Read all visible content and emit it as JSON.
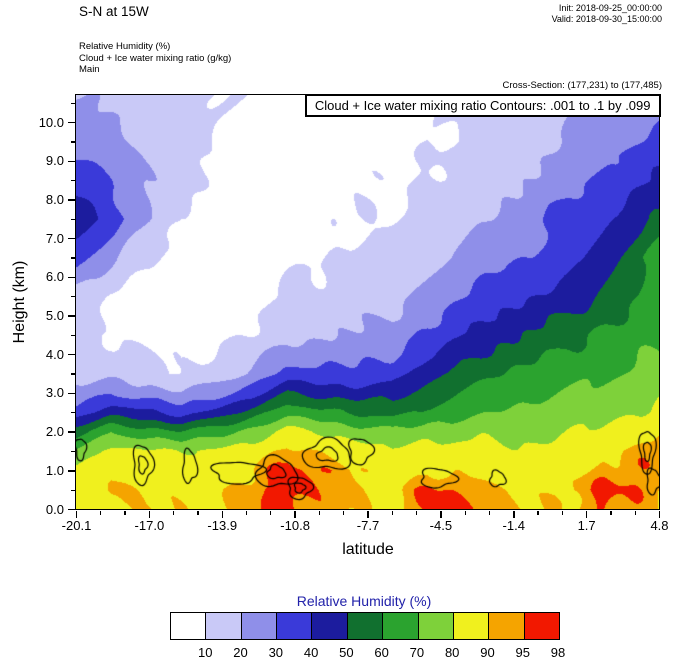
{
  "header": {
    "title": "S-N at 15W",
    "init_label": "Init: 2018-09-25_00:00:00",
    "valid_label": "Valid: 2018-09-30_15:00:00",
    "legend_lines": [
      "Relative Humidity  (%)",
      "Cloud + Ice water mixing ratio  (g/kg)",
      "Main"
    ],
    "cross_section": "Cross-Section: (177,231) to (177,485)"
  },
  "plot": {
    "annotation": "Cloud + Ice water mixing ratio Contours: .001 to .1 by .099",
    "xlabel": "latitude",
    "ylabel": "Height (km)"
  },
  "colorbar": {
    "title": "Relative Humidity  (%)",
    "title_color": "#2222aa",
    "labels": [
      "10",
      "20",
      "30",
      "40",
      "50",
      "60",
      "70",
      "80",
      "90",
      "95",
      "98"
    ],
    "colors": [
      "#ffffff",
      "#c9c9f7",
      "#8f8fe9",
      "#3a3ad9",
      "#1c1c9e",
      "#11702f",
      "#2ba32f",
      "#7ed13a",
      "#f0f01e",
      "#f5a400",
      "#f21800"
    ]
  },
  "chart_data": {
    "type": "heatmap",
    "title": "S-N at 15W cross-section of Relative Humidity (%) with Cloud + Ice water mixing ratio contours",
    "xlabel": "latitude",
    "ylabel": "Height (km)",
    "xlim": [
      -20.1,
      4.8
    ],
    "ylim": [
      0,
      10.7
    ],
    "x_tick_labels": [
      "-20.1",
      "-17.0",
      "-13.9",
      "-10.8",
      "-7.7",
      "-4.5",
      "-1.4",
      "1.7",
      "4.8"
    ],
    "y_tick_labels": [
      "0.0",
      "1.0",
      "2.0",
      "3.0",
      "4.0",
      "5.0",
      "6.0",
      "7.0",
      "8.0",
      "9.0",
      "10.0"
    ],
    "levels": [
      10,
      20,
      30,
      40,
      50,
      60,
      70,
      80,
      90,
      95,
      98
    ],
    "colors": [
      "#ffffff",
      "#c9c9f7",
      "#8f8fe9",
      "#3a3ad9",
      "#1c1c9e",
      "#11702f",
      "#2ba32f",
      "#7ed13a",
      "#f0f01e",
      "#f5a400",
      "#f21800"
    ],
    "grid": {
      "x": [
        -20.1,
        -18.6,
        -17.1,
        -15.6,
        -14.1,
        -12.6,
        -11.1,
        -9.6,
        -8.1,
        -6.6,
        -5.1,
        -3.6,
        -2.1,
        -0.6,
        0.9,
        2.4,
        3.9,
        4.8
      ],
      "y": [
        0,
        0.5,
        1,
        1.5,
        2,
        2.5,
        3,
        3.5,
        4.5,
        5.5,
        6.5,
        7.5,
        8.5,
        9.5,
        10.7
      ],
      "rh": [
        [
          86,
          91,
          88,
          90,
          88,
          92,
          97,
          93,
          89,
          88,
          97,
          96,
          93,
          88,
          89,
          96,
          93,
          89
        ],
        [
          84,
          92,
          88,
          87,
          88,
          93,
          99,
          94,
          90,
          87,
          96,
          93,
          92,
          88,
          90,
          97,
          94,
          91
        ],
        [
          82,
          88,
          86,
          84,
          86,
          90,
          98,
          95,
          89,
          85,
          90,
          88,
          87,
          85,
          87,
          92,
          94,
          92
        ],
        [
          74,
          83,
          81,
          79,
          82,
          86,
          92,
          90,
          85,
          81,
          84,
          83,
          83,
          82,
          84,
          87,
          92,
          93
        ],
        [
          55,
          68,
          65,
          60,
          66,
          74,
          83,
          80,
          75,
          72,
          76,
          77,
          78,
          77,
          79,
          81,
          86,
          88
        ],
        [
          32,
          46,
          42,
          36,
          44,
          55,
          66,
          62,
          58,
          56,
          63,
          67,
          71,
          72,
          74,
          76,
          80,
          82
        ],
        [
          22,
          28,
          25,
          20,
          26,
          36,
          50,
          47,
          45,
          46,
          55,
          61,
          66,
          68,
          70,
          72,
          75,
          77
        ],
        [
          14,
          17,
          14,
          11,
          15,
          22,
          33,
          32,
          32,
          35,
          46,
          53,
          59,
          63,
          66,
          68,
          71,
          72
        ],
        [
          12,
          9,
          7,
          5,
          7,
          11,
          17,
          19,
          20,
          23,
          32,
          40,
          47,
          52,
          57,
          62,
          66,
          68
        ],
        [
          16,
          9,
          6,
          4,
          5,
          7,
          11,
          13,
          15,
          17,
          23,
          29,
          36,
          40,
          44,
          50,
          60,
          68
        ],
        [
          32,
          22,
          12,
          7,
          5,
          5,
          8,
          9,
          11,
          12,
          16,
          21,
          26,
          30,
          36,
          44,
          58,
          66
        ],
        [
          48,
          36,
          20,
          10,
          7,
          5,
          7,
          7,
          9,
          10,
          13,
          17,
          22,
          27,
          34,
          40,
          47,
          52
        ],
        [
          38,
          30,
          20,
          13,
          9,
          6,
          5,
          6,
          8,
          8,
          11,
          13,
          17,
          21,
          27,
          32,
          38,
          41
        ],
        [
          26,
          23,
          18,
          13,
          9,
          6,
          5,
          5,
          6,
          7,
          9,
          11,
          13,
          16,
          20,
          25,
          30,
          33
        ],
        [
          19,
          18,
          16,
          14,
          12,
          9,
          7,
          6,
          6,
          8,
          11,
          13,
          15,
          17,
          20,
          24,
          26,
          25
        ]
      ]
    },
    "cloud_contours": {
      "levels": [
        0.001,
        0.1
      ],
      "blobs": [
        {
          "lat": -19.9,
          "km": 1.55,
          "rx": 0.22,
          "ry": 0.28,
          "ph": 0.5,
          "inner": false
        },
        {
          "lat": -17.25,
          "km": 1.15,
          "rx": 0.42,
          "ry": 0.5,
          "ph": 1.2,
          "inner": true
        },
        {
          "lat": -15.25,
          "km": 1.1,
          "rx": 0.3,
          "ry": 0.42,
          "ph": 2.1,
          "inner": false
        },
        {
          "lat": -13.2,
          "km": 0.95,
          "rx": 1.05,
          "ry": 0.28,
          "ph": 0.4,
          "inner": false
        },
        {
          "lat": -11.55,
          "km": 0.95,
          "rx": 0.85,
          "ry": 0.38,
          "ph": 2.8,
          "inner": true
        },
        {
          "lat": -10.55,
          "km": 0.55,
          "rx": 0.5,
          "ry": 0.28,
          "ph": 1.0,
          "inner": true
        },
        {
          "lat": -9.35,
          "km": 1.4,
          "rx": 1.0,
          "ry": 0.38,
          "ph": 3.6,
          "inner": true
        },
        {
          "lat": -7.95,
          "km": 1.5,
          "rx": 0.5,
          "ry": 0.33,
          "ph": 0.9,
          "inner": false
        },
        {
          "lat": -4.65,
          "km": 0.8,
          "rx": 0.75,
          "ry": 0.24,
          "ph": 1.6,
          "inner": false
        },
        {
          "lat": -2.1,
          "km": 0.78,
          "rx": 0.33,
          "ry": 0.2,
          "ph": 2.4,
          "inner": false
        },
        {
          "lat": 4.3,
          "km": 1.5,
          "rx": 0.33,
          "ry": 0.55,
          "ph": 0.2,
          "inner": true
        },
        {
          "lat": 4.55,
          "km": 0.72,
          "rx": 0.28,
          "ry": 0.33,
          "ph": 1.4,
          "inner": false
        }
      ]
    }
  }
}
